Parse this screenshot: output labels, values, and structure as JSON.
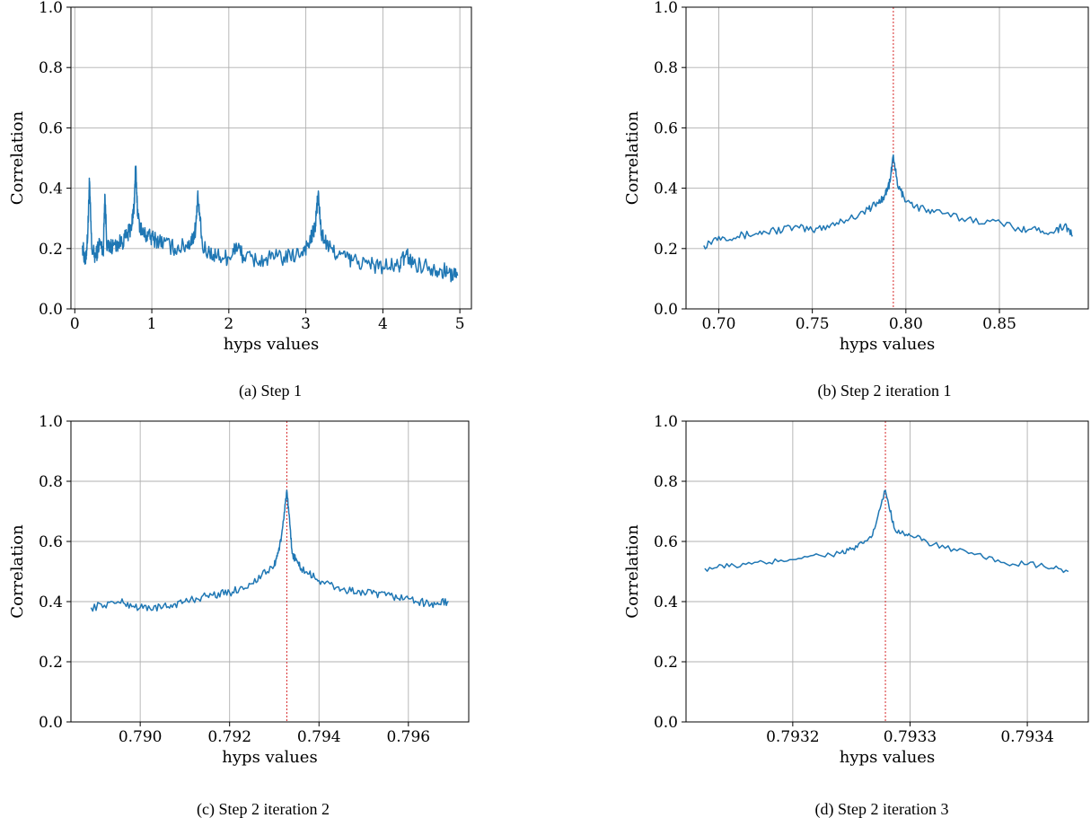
{
  "figure": {
    "panels": [
      {
        "caption": "(a) Step 1"
      },
      {
        "caption": "(b) Step 2 iteration 1"
      },
      {
        "caption": "(c) Step 2 iteration 2"
      },
      {
        "caption": "(d) Step 2 iteration 3"
      }
    ]
  },
  "colors": {
    "line": "#1f77b4",
    "marker": "#d62728",
    "grid": "#b0b0b0"
  },
  "chart_data": [
    {
      "type": "line",
      "xlabel": "hyps values",
      "ylabel": "Correlation",
      "xlim": [
        -0.05,
        5.15
      ],
      "ylim": [
        0.0,
        1.0
      ],
      "xticks": [
        {
          "v": 0,
          "label": "0"
        },
        {
          "v": 1,
          "label": "1"
        },
        {
          "v": 2,
          "label": "2"
        },
        {
          "v": 3,
          "label": "3"
        },
        {
          "v": 4,
          "label": "4"
        },
        {
          "v": 5,
          "label": "5"
        }
      ],
      "yticks": [
        {
          "v": 0.0,
          "label": "0.0"
        },
        {
          "v": 0.2,
          "label": "0.2"
        },
        {
          "v": 0.4,
          "label": "0.4"
        },
        {
          "v": 0.6,
          "label": "0.6"
        },
        {
          "v": 0.8,
          "label": "0.8"
        },
        {
          "v": 1.0,
          "label": "1.0"
        }
      ],
      "grid": true,
      "vline": null,
      "series": [
        {
          "x": [
            0.1,
            0.14,
            0.17,
            0.19,
            0.22,
            0.27,
            0.32,
            0.37,
            0.39,
            0.42,
            0.5,
            0.6,
            0.68,
            0.74,
            0.77,
            0.79,
            0.82,
            0.88,
            0.95,
            1.05,
            1.15,
            1.3,
            1.45,
            1.53,
            1.57,
            1.6,
            1.66,
            1.8,
            1.95,
            2.05,
            2.1,
            2.2,
            2.4,
            2.6,
            2.8,
            2.95,
            3.05,
            3.12,
            3.16,
            3.2,
            3.3,
            3.45,
            3.6,
            3.8,
            4.0,
            4.2,
            4.3,
            4.4,
            4.6,
            4.75,
            4.85,
            4.97
          ],
          "y": [
            0.21,
            0.15,
            0.26,
            0.42,
            0.2,
            0.17,
            0.22,
            0.19,
            0.38,
            0.2,
            0.21,
            0.22,
            0.24,
            0.28,
            0.34,
            0.47,
            0.3,
            0.25,
            0.24,
            0.23,
            0.22,
            0.2,
            0.21,
            0.23,
            0.27,
            0.37,
            0.2,
            0.18,
            0.17,
            0.18,
            0.21,
            0.17,
            0.16,
            0.17,
            0.17,
            0.19,
            0.22,
            0.27,
            0.38,
            0.25,
            0.2,
            0.18,
            0.16,
            0.15,
            0.14,
            0.14,
            0.18,
            0.15,
            0.14,
            0.13,
            0.12,
            0.11
          ]
        }
      ]
    },
    {
      "type": "line",
      "xlabel": "hyps values",
      "ylabel": "Correlation",
      "xlim": [
        0.6825,
        0.8975
      ],
      "ylim": [
        0.0,
        1.0
      ],
      "xticks": [
        {
          "v": 0.7,
          "label": "0.70"
        },
        {
          "v": 0.75,
          "label": "0.75"
        },
        {
          "v": 0.8,
          "label": "0.80"
        },
        {
          "v": 0.85,
          "label": "0.85"
        }
      ],
      "yticks": [
        {
          "v": 0.0,
          "label": "0.0"
        },
        {
          "v": 0.2,
          "label": "0.2"
        },
        {
          "v": 0.4,
          "label": "0.4"
        },
        {
          "v": 0.6,
          "label": "0.6"
        },
        {
          "v": 0.8,
          "label": "0.8"
        },
        {
          "v": 1.0,
          "label": "1.0"
        }
      ],
      "grid": true,
      "vline": 0.7933,
      "series": [
        {
          "x": [
            0.692,
            0.7,
            0.71,
            0.72,
            0.73,
            0.74,
            0.75,
            0.76,
            0.77,
            0.78,
            0.785,
            0.789,
            0.7915,
            0.7933,
            0.7955,
            0.799,
            0.805,
            0.815,
            0.83,
            0.845,
            0.86,
            0.87,
            0.88,
            0.885,
            0.889
          ],
          "y": [
            0.21,
            0.24,
            0.24,
            0.25,
            0.26,
            0.27,
            0.26,
            0.28,
            0.3,
            0.33,
            0.35,
            0.38,
            0.42,
            0.51,
            0.41,
            0.37,
            0.34,
            0.32,
            0.3,
            0.29,
            0.27,
            0.26,
            0.26,
            0.28,
            0.24
          ]
        }
      ]
    },
    {
      "type": "line",
      "xlabel": "hyps values",
      "ylabel": "Correlation",
      "xlim": [
        0.78845,
        0.79735
      ],
      "ylim": [
        0.0,
        1.0
      ],
      "xticks": [
        {
          "v": 0.79,
          "label": "0.790"
        },
        {
          "v": 0.792,
          "label": "0.792"
        },
        {
          "v": 0.794,
          "label": "0.794"
        },
        {
          "v": 0.796,
          "label": "0.796"
        }
      ],
      "yticks": [
        {
          "v": 0.0,
          "label": "0.0"
        },
        {
          "v": 0.2,
          "label": "0.2"
        },
        {
          "v": 0.4,
          "label": "0.4"
        },
        {
          "v": 0.6,
          "label": "0.6"
        },
        {
          "v": 0.8,
          "label": "0.8"
        },
        {
          "v": 1.0,
          "label": "1.0"
        }
      ],
      "grid": true,
      "vline": 0.79328,
      "series": [
        {
          "x": [
            0.7889,
            0.7895,
            0.79,
            0.7905,
            0.791,
            0.7915,
            0.792,
            0.7925,
            0.793,
            0.79315,
            0.79328,
            0.7934,
            0.7936,
            0.794,
            0.7945,
            0.795,
            0.7955,
            0.796,
            0.7965,
            0.7969
          ],
          "y": [
            0.38,
            0.4,
            0.38,
            0.38,
            0.4,
            0.42,
            0.43,
            0.46,
            0.52,
            0.6,
            0.77,
            0.56,
            0.51,
            0.47,
            0.44,
            0.43,
            0.42,
            0.41,
            0.39,
            0.4
          ]
        }
      ]
    },
    {
      "type": "line",
      "xlabel": "hyps values",
      "ylabel": "Correlation",
      "xlim": [
        0.793109,
        0.793452
      ],
      "ylim": [
        0.0,
        1.0
      ],
      "xticks": [
        {
          "v": 0.7932,
          "label": "0.7932"
        },
        {
          "v": 0.7933,
          "label": "0.7933"
        },
        {
          "v": 0.7934,
          "label": "0.7934"
        }
      ],
      "yticks": [
        {
          "v": 0.0,
          "label": "0.0"
        },
        {
          "v": 0.2,
          "label": "0.2"
        },
        {
          "v": 0.4,
          "label": "0.4"
        },
        {
          "v": 0.6,
          "label": "0.6"
        },
        {
          "v": 0.8,
          "label": "0.8"
        },
        {
          "v": 1.0,
          "label": "1.0"
        }
      ],
      "grid": true,
      "vline": 0.793279,
      "series": [
        {
          "x": [
            0.793125,
            0.79315,
            0.79318,
            0.79321,
            0.79324,
            0.793255,
            0.793268,
            0.793279,
            0.793287,
            0.7933,
            0.79332,
            0.79335,
            0.79338,
            0.79341,
            0.793435
          ],
          "y": [
            0.51,
            0.52,
            0.53,
            0.55,
            0.56,
            0.58,
            0.62,
            0.77,
            0.64,
            0.62,
            0.59,
            0.56,
            0.53,
            0.52,
            0.5
          ]
        }
      ]
    }
  ]
}
